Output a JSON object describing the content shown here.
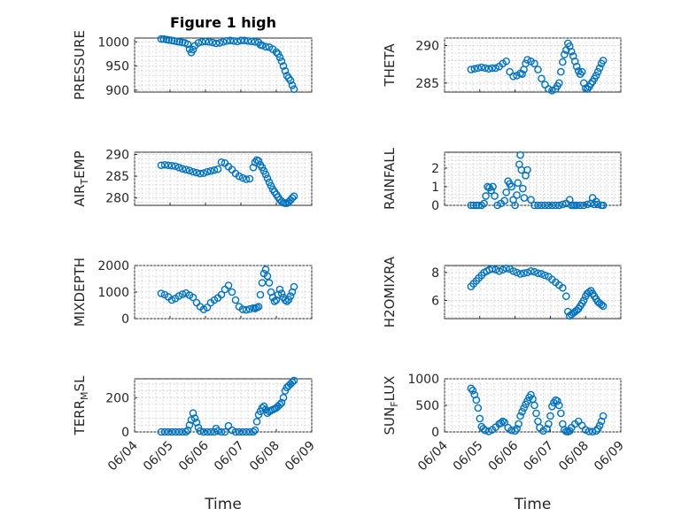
{
  "window": {
    "title": "Figure 1 high"
  },
  "colors": {
    "marker": "#0072BD",
    "axis": "#262626",
    "grid": "#c8c8c8"
  },
  "chart_data": [
    {
      "type": "scatter",
      "title": "Figure 1 high",
      "ylabel": "PRESSURE",
      "xlim": [
        "06/04",
        "06/09"
      ],
      "ylim": [
        896,
        1008
      ],
      "yticks": [
        900,
        950,
        1000
      ],
      "xticks": [
        "06/04",
        "06/05",
        "06/06",
        "06/07",
        "06/08",
        "06/09"
      ],
      "xticklabels_visible": false,
      "grid": "dotted",
      "series": [
        {
          "x": [
            4.75,
            4.82,
            4.9,
            4.97,
            5.05,
            5.12,
            5.2,
            5.27,
            5.35,
            5.42,
            5.5,
            5.55,
            5.6,
            5.65,
            5.7,
            5.8,
            5.9,
            6.0,
            6.1,
            6.2,
            6.3,
            6.4,
            6.5,
            6.6,
            6.7,
            6.8,
            6.9,
            7.0,
            7.1,
            7.2,
            7.3,
            7.4,
            7.5,
            7.55,
            7.6,
            7.7,
            7.8,
            7.9,
            8.0,
            8.05,
            8.1,
            8.15,
            8.2,
            8.25,
            8.3,
            8.35,
            8.4,
            8.45,
            8.5
          ],
          "y": [
            1006,
            1006,
            1005,
            1004,
            1003,
            1002,
            1001,
            1000,
            999,
            998,
            995,
            985,
            978,
            984,
            992,
            998,
            1000,
            1001,
            1000,
            999,
            997,
            998,
            1000,
            1002,
            1003,
            1002,
            1001,
            1003,
            1003,
            1002,
            1001,
            1000,
            999,
            994,
            993,
            990,
            989,
            985,
            979,
            975,
            968,
            960,
            950,
            940,
            930,
            925,
            920,
            910,
            902
          ]
        }
      ]
    },
    {
      "type": "scatter",
      "ylabel": "THETA",
      "xlim": [
        "06/04",
        "06/09"
      ],
      "ylim": [
        283.8,
        291
      ],
      "yticks": [
        285,
        290
      ],
      "xticks": [
        "06/04",
        "06/05",
        "06/06",
        "06/07",
        "06/08",
        "06/09"
      ],
      "xticklabels_visible": false,
      "grid": "dotted",
      "series": [
        {
          "x": [
            4.75,
            4.85,
            4.95,
            5.05,
            5.15,
            5.25,
            5.35,
            5.45,
            5.55,
            5.65,
            5.75,
            5.85,
            5.95,
            6.05,
            6.15,
            6.2,
            6.25,
            6.3,
            6.35,
            6.45,
            6.55,
            6.65,
            6.75,
            6.85,
            6.95,
            7.05,
            7.15,
            7.2,
            7.25,
            7.3,
            7.35,
            7.4,
            7.45,
            7.5,
            7.55,
            7.6,
            7.65,
            7.7,
            7.75,
            7.8,
            7.85,
            7.9,
            7.95,
            8.0,
            8.05,
            8.1,
            8.15,
            8.2,
            8.25,
            8.3,
            8.35,
            8.4,
            8.45,
            8.5
          ],
          "y": [
            286.8,
            286.9,
            287.0,
            287.1,
            287.0,
            286.9,
            287.0,
            287.0,
            287.2,
            287.6,
            287.9,
            286.5,
            285.9,
            286.0,
            286.3,
            286.2,
            286.8,
            287.6,
            288.1,
            287.9,
            287.6,
            286.8,
            285.6,
            284.8,
            284.2,
            284.0,
            284.2,
            284.6,
            285.0,
            286.5,
            287.8,
            288.8,
            289.4,
            290.3,
            289.9,
            289.2,
            288.6,
            287.9,
            287.2,
            286.6,
            286.2,
            286.5,
            285.0,
            284.3,
            284.2,
            284.5,
            284.9,
            285.2,
            285.6,
            286.0,
            286.5,
            287.0,
            287.6,
            288.0
          ]
        }
      ]
    },
    {
      "type": "scatter",
      "ylabel": "AIR_TEMP",
      "xlim": [
        "06/04",
        "06/09"
      ],
      "ylim": [
        278.3,
        290.5
      ],
      "yticks": [
        280,
        285,
        290
      ],
      "xticks": [
        "06/04",
        "06/05",
        "06/06",
        "06/07",
        "06/08",
        "06/09"
      ],
      "xticklabels_visible": false,
      "grid": "dotted",
      "series": [
        {
          "x": [
            4.75,
            4.85,
            4.95,
            5.05,
            5.15,
            5.25,
            5.35,
            5.45,
            5.55,
            5.65,
            5.75,
            5.85,
            5.95,
            6.05,
            6.15,
            6.25,
            6.35,
            6.45,
            6.55,
            6.65,
            6.75,
            6.85,
            6.95,
            7.05,
            7.15,
            7.25,
            7.35,
            7.4,
            7.45,
            7.5,
            7.55,
            7.6,
            7.65,
            7.7,
            7.75,
            7.8,
            7.85,
            7.9,
            7.95,
            8.0,
            8.05,
            8.1,
            8.15,
            8.2,
            8.25,
            8.3,
            8.35,
            8.4,
            8.45,
            8.5
          ],
          "y": [
            287.5,
            287.6,
            287.5,
            287.4,
            287.3,
            287.0,
            286.7,
            286.5,
            286.3,
            286.0,
            285.8,
            285.6,
            285.7,
            286.0,
            286.2,
            286.4,
            286.6,
            288.2,
            288.0,
            287.2,
            286.5,
            285.6,
            285.0,
            284.6,
            284.3,
            284.4,
            287.0,
            288.2,
            288.7,
            288.5,
            287.6,
            287.0,
            286.2,
            285.4,
            284.5,
            283.6,
            282.8,
            282.0,
            281.4,
            280.8,
            280.2,
            279.6,
            279.2,
            278.9,
            278.8,
            278.8,
            279.1,
            279.5,
            280.0,
            280.4
          ]
        }
      ]
    },
    {
      "type": "scatter",
      "ylabel": "RAINFALL",
      "xlim": [
        "06/04",
        "06/09"
      ],
      "ylim": [
        0,
        2.85
      ],
      "yticks": [
        0,
        1,
        2
      ],
      "xticks": [
        "06/04",
        "06/05",
        "06/06",
        "06/07",
        "06/08",
        "06/09"
      ],
      "xticklabels_visible": false,
      "grid": "dotted",
      "series": [
        {
          "x": [
            4.75,
            4.82,
            4.9,
            4.97,
            5.05,
            5.12,
            5.17,
            5.22,
            5.27,
            5.32,
            5.37,
            5.42,
            5.5,
            5.6,
            5.7,
            5.75,
            5.8,
            5.85,
            5.9,
            5.95,
            6.0,
            6.05,
            6.08,
            6.12,
            6.15,
            6.18,
            6.22,
            6.26,
            6.3,
            6.35,
            6.45,
            6.55,
            6.65,
            6.75,
            6.85,
            6.95,
            7.05,
            7.15,
            7.25,
            7.35,
            7.45,
            7.55,
            7.6,
            7.65,
            7.7,
            7.75,
            7.85,
            7.95,
            8.05,
            8.15,
            8.2,
            8.25,
            8.3,
            8.35,
            8.45,
            8.5
          ],
          "y": [
            0,
            0,
            0,
            0,
            0,
            0.1,
            0.5,
            1.0,
            0.95,
            0.8,
            1.0,
            0.5,
            0,
            0.1,
            0.25,
            0.7,
            1.3,
            1.15,
            1.0,
            0.3,
            0,
            0.55,
            1.2,
            2.2,
            2.7,
            1.9,
            0.9,
            0.4,
            1.6,
            1.9,
            0.3,
            0,
            0,
            0,
            0,
            0,
            0,
            0,
            0,
            0.05,
            0.1,
            0.3,
            0,
            0,
            0,
            0,
            0,
            0,
            0.05,
            0.1,
            0.4,
            0.05,
            0.2,
            0.05,
            0,
            0
          ]
        }
      ]
    },
    {
      "type": "scatter",
      "ylabel": "MIXDEPTH",
      "xlim": [
        "06/04",
        "06/09"
      ],
      "ylim": [
        0,
        2000
      ],
      "yticks": [
        0,
        1000,
        2000
      ],
      "xticks": [
        "06/04",
        "06/05",
        "06/06",
        "06/07",
        "06/08",
        "06/09"
      ],
      "xticklabels_visible": false,
      "grid": "dotted",
      "series": [
        {
          "x": [
            4.75,
            4.85,
            4.95,
            5.05,
            5.15,
            5.25,
            5.35,
            5.45,
            5.55,
            5.65,
            5.75,
            5.85,
            5.95,
            6.05,
            6.15,
            6.25,
            6.35,
            6.45,
            6.55,
            6.65,
            6.75,
            6.85,
            6.95,
            7.05,
            7.15,
            7.25,
            7.35,
            7.4,
            7.45,
            7.5,
            7.55,
            7.6,
            7.65,
            7.7,
            7.75,
            7.8,
            7.85,
            7.9,
            7.95,
            8.0,
            8.05,
            8.1,
            8.15,
            8.2,
            8.25,
            8.3,
            8.35,
            8.4,
            8.45,
            8.5
          ],
          "y": [
            950,
            900,
            820,
            700,
            760,
            850,
            920,
            960,
            880,
            800,
            600,
            450,
            350,
            420,
            600,
            700,
            780,
            900,
            1100,
            1250,
            1000,
            700,
            450,
            350,
            330,
            360,
            400,
            380,
            420,
            450,
            900,
            1350,
            1700,
            1850,
            1600,
            1350,
            1000,
            800,
            650,
            700,
            900,
            1100,
            950,
            800,
            700,
            650,
            720,
            850,
            1000,
            1200
          ]
        }
      ]
    },
    {
      "type": "scatter",
      "ylabel": "H2OMIXRA",
      "xlim": [
        "06/04",
        "06/09"
      ],
      "ylim": [
        4.7,
        8.5
      ],
      "yticks": [
        6,
        8
      ],
      "xticks": [
        "06/04",
        "06/05",
        "06/06",
        "06/07",
        "06/08",
        "06/09"
      ],
      "xticklabels_visible": false,
      "grid": "dotted",
      "series": [
        {
          "x": [
            4.75,
            4.82,
            4.9,
            4.97,
            5.05,
            5.12,
            5.2,
            5.27,
            5.35,
            5.45,
            5.55,
            5.65,
            5.75,
            5.85,
            5.95,
            6.05,
            6.15,
            6.25,
            6.35,
            6.45,
            6.55,
            6.65,
            6.75,
            6.85,
            6.95,
            7.05,
            7.15,
            7.25,
            7.35,
            7.45,
            7.5,
            7.55,
            7.6,
            7.65,
            7.7,
            7.75,
            7.8,
            7.85,
            7.9,
            7.95,
            8.0,
            8.05,
            8.1,
            8.15,
            8.2,
            8.25,
            8.3,
            8.35,
            8.4,
            8.45,
            8.5
          ],
          "y": [
            7.0,
            7.2,
            7.4,
            7.6,
            7.8,
            8.0,
            8.1,
            8.2,
            8.25,
            8.2,
            8.1,
            8.2,
            8.3,
            8.25,
            8.1,
            8.0,
            7.9,
            7.95,
            8.0,
            8.1,
            8.05,
            7.95,
            7.9,
            7.8,
            7.7,
            7.5,
            7.3,
            7.1,
            6.9,
            6.3,
            5.2,
            4.9,
            5.0,
            5.1,
            5.2,
            5.3,
            5.4,
            5.6,
            5.8,
            6.0,
            6.3,
            6.5,
            6.6,
            6.7,
            6.5,
            6.3,
            6.1,
            5.9,
            5.8,
            5.7,
            5.6
          ]
        }
      ]
    },
    {
      "type": "scatter",
      "ylabel": "TERR_MSL",
      "xlabel": "Time",
      "xlim": [
        "06/04",
        "06/09"
      ],
      "ylim": [
        0,
        310
      ],
      "yticks": [
        0,
        200
      ],
      "xticks": [
        "06/04",
        "06/05",
        "06/06",
        "06/07",
        "06/08",
        "06/09"
      ],
      "grid": "dotted",
      "series": [
        {
          "x": [
            4.75,
            4.85,
            4.95,
            5.05,
            5.15,
            5.25,
            5.35,
            5.45,
            5.5,
            5.55,
            5.6,
            5.65,
            5.7,
            5.75,
            5.8,
            5.85,
            5.95,
            6.05,
            6.15,
            6.25,
            6.3,
            6.35,
            6.45,
            6.55,
            6.65,
            6.75,
            6.85,
            6.95,
            7.05,
            7.15,
            7.25,
            7.35,
            7.4,
            7.45,
            7.5,
            7.55,
            7.6,
            7.65,
            7.7,
            7.75,
            7.8,
            7.85,
            7.9,
            7.95,
            8.0,
            8.05,
            8.1,
            8.15,
            8.2,
            8.25,
            8.3,
            8.35,
            8.4,
            8.45,
            8.5
          ],
          "y": [
            0,
            0,
            0,
            0,
            0,
            0,
            0,
            0,
            10,
            40,
            70,
            110,
            80,
            55,
            25,
            5,
            0,
            0,
            0,
            0,
            20,
            5,
            0,
            0,
            35,
            10,
            0,
            0,
            0,
            0,
            0,
            0,
            10,
            60,
            100,
            120,
            140,
            150,
            130,
            110,
            120,
            125,
            130,
            135,
            140,
            150,
            160,
            170,
            200,
            240,
            260,
            270,
            280,
            290,
            300
          ]
        }
      ]
    },
    {
      "type": "scatter",
      "ylabel": "SUN_FLUX",
      "xlabel": "Time",
      "xlim": [
        "06/04",
        "06/09"
      ],
      "ylim": [
        0,
        1000
      ],
      "yticks": [
        0,
        500,
        1000
      ],
      "xticks": [
        "06/04",
        "06/05",
        "06/06",
        "06/07",
        "06/08",
        "06/09"
      ],
      "grid": "dotted",
      "series": [
        {
          "x": [
            4.75,
            4.8,
            4.85,
            4.9,
            4.95,
            5.0,
            5.05,
            5.1,
            5.15,
            5.25,
            5.35,
            5.45,
            5.55,
            5.6,
            5.65,
            5.7,
            5.8,
            5.9,
            6.0,
            6.05,
            6.1,
            6.15,
            6.2,
            6.25,
            6.3,
            6.35,
            6.4,
            6.45,
            6.5,
            6.55,
            6.6,
            6.65,
            6.7,
            6.8,
            6.9,
            6.95,
            7.0,
            7.05,
            7.1,
            7.15,
            7.2,
            7.25,
            7.3,
            7.35,
            7.4,
            7.45,
            7.5,
            7.55,
            7.6,
            7.7,
            7.8,
            7.9,
            8.0,
            8.1,
            8.2,
            8.3,
            8.35,
            8.4,
            8.45,
            8.5
          ],
          "y": [
            820,
            780,
            700,
            600,
            450,
            250,
            100,
            60,
            30,
            10,
            40,
            90,
            150,
            170,
            200,
            180,
            80,
            30,
            20,
            60,
            150,
            300,
            380,
            450,
            520,
            580,
            650,
            700,
            620,
            500,
            350,
            200,
            80,
            20,
            60,
            150,
            300,
            480,
            550,
            600,
            580,
            500,
            350,
            150,
            40,
            10,
            5,
            20,
            80,
            150,
            200,
            120,
            40,
            10,
            5,
            20,
            60,
            120,
            200,
            300
          ]
        }
      ]
    }
  ]
}
